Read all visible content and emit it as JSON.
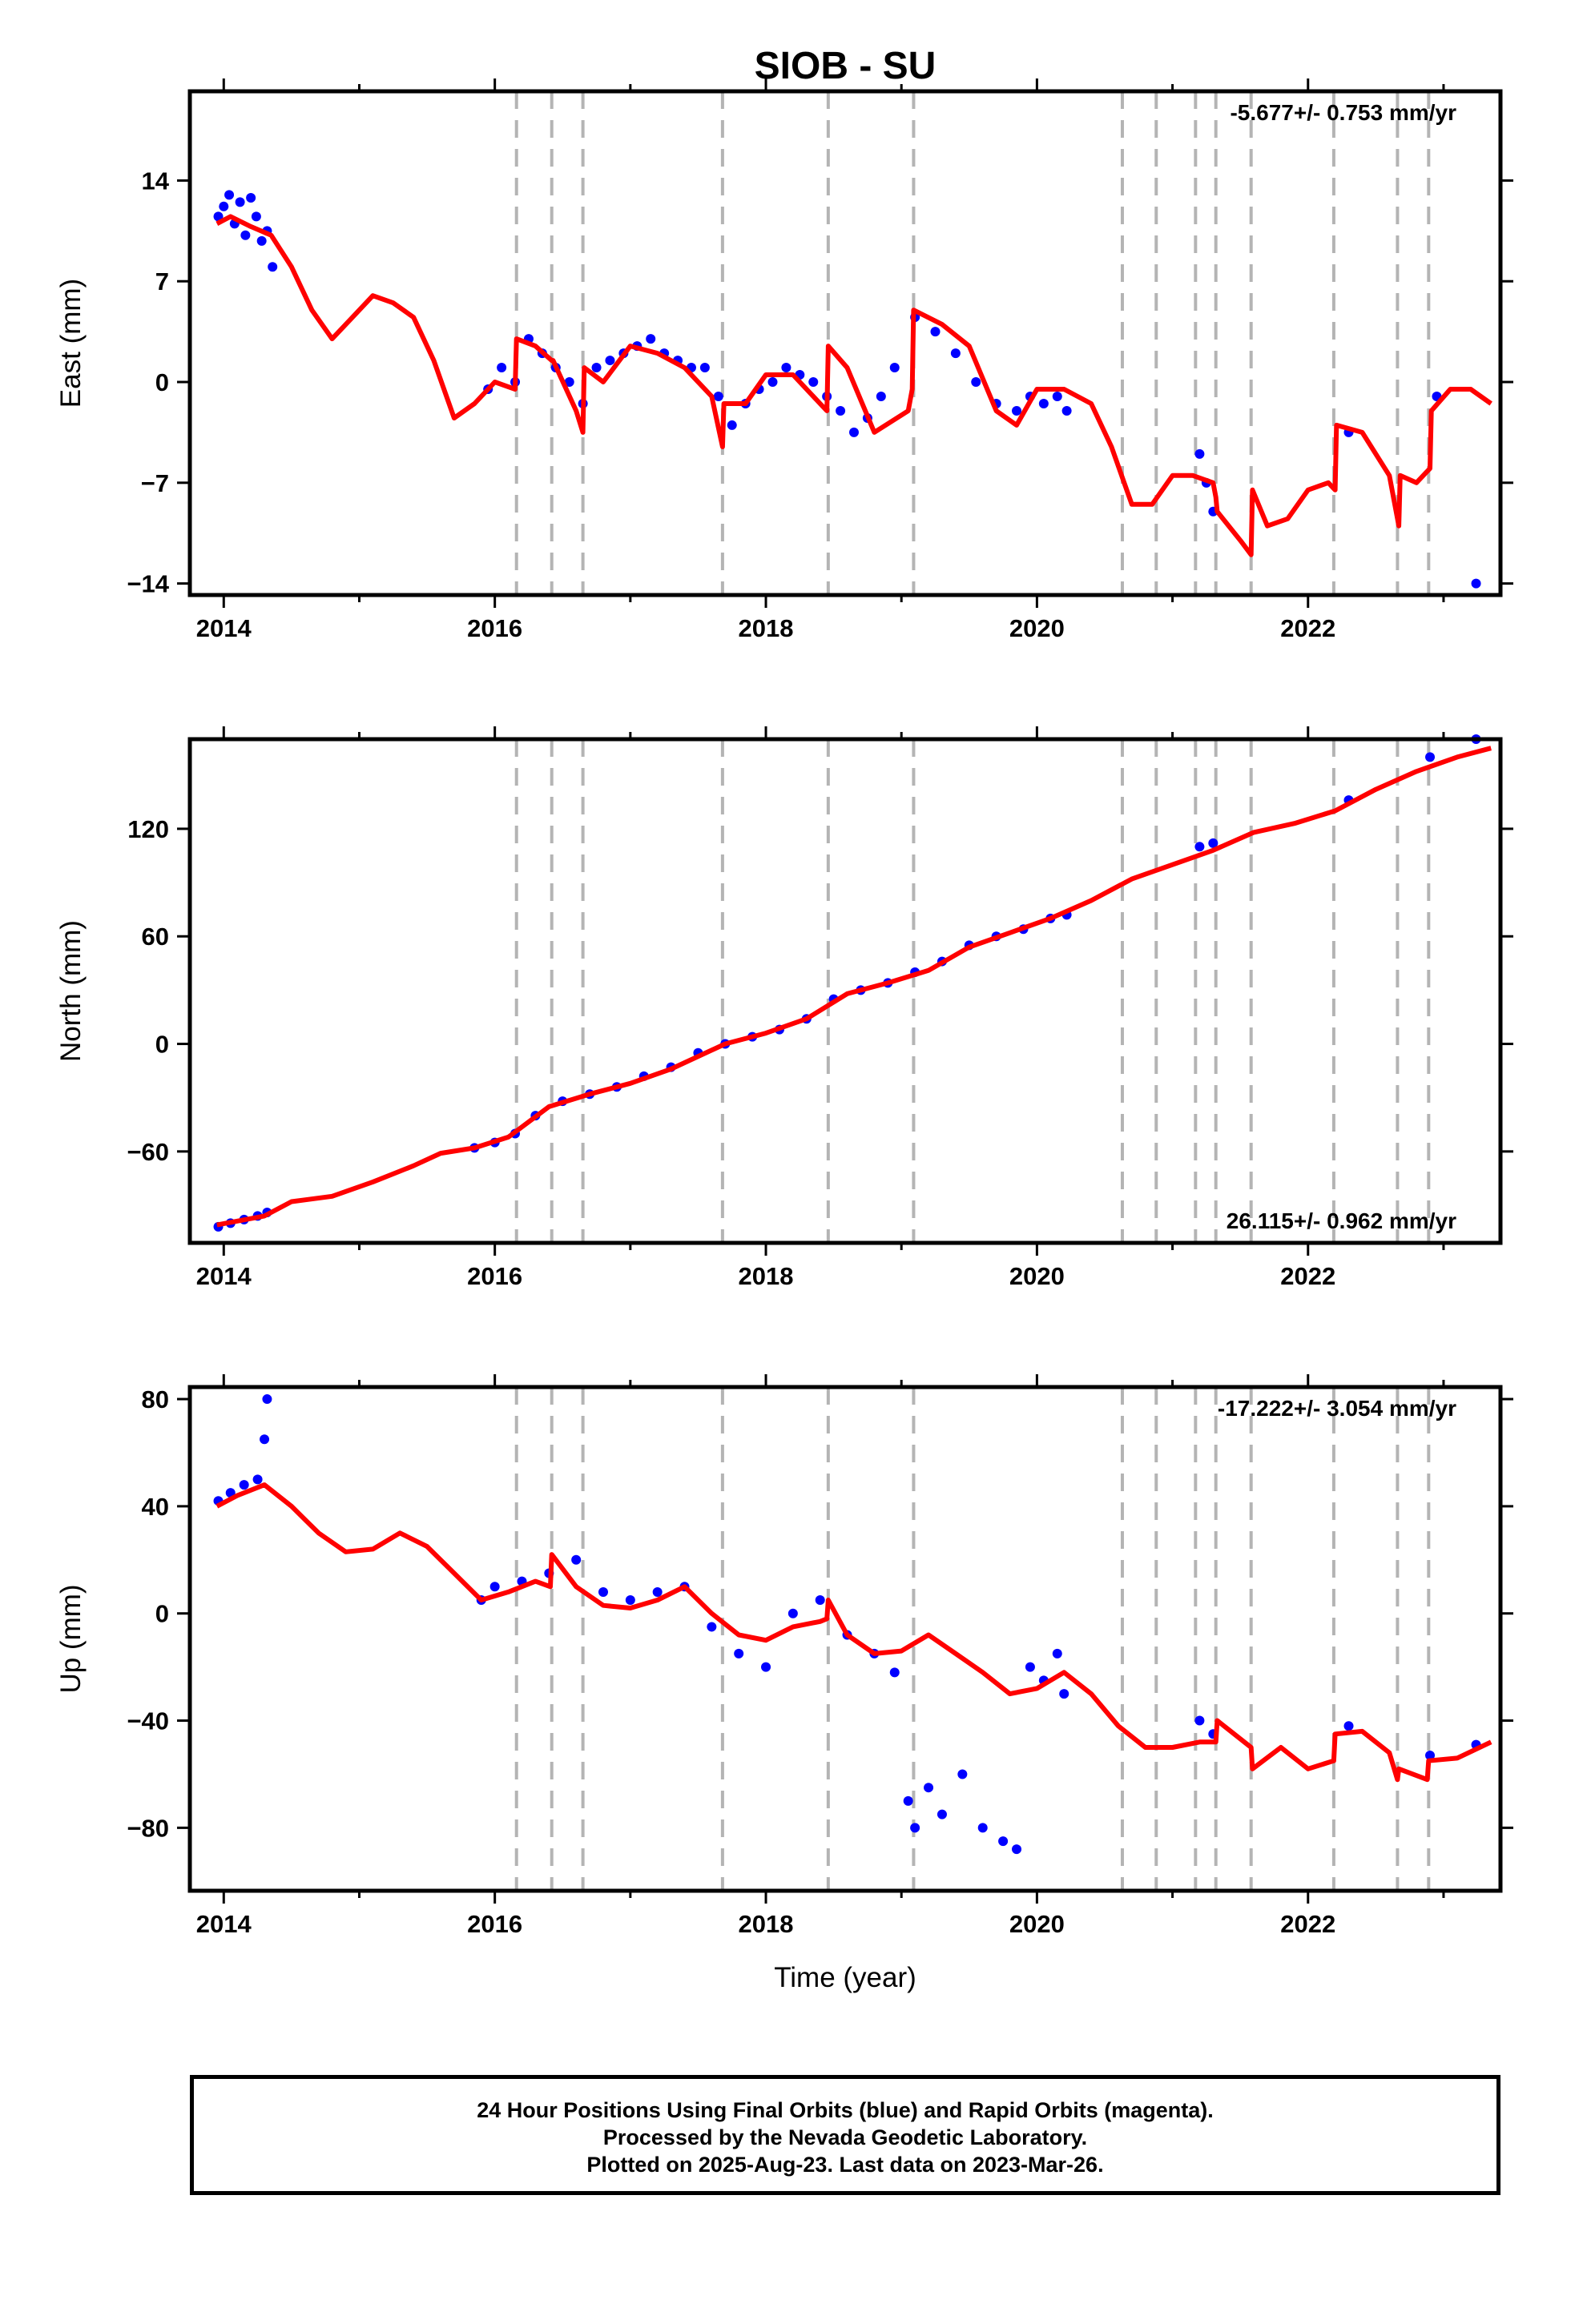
{
  "chart_data": [
    {
      "type": "scatter",
      "title": "SIOB - SU",
      "xlabel": "",
      "ylabel": "East (mm)",
      "xlim": [
        2013.75,
        2023.42
      ],
      "ylim": [
        -14.8,
        20.2
      ],
      "xticks": [
        2014,
        2016,
        2018,
        2020,
        2022
      ],
      "yticks": [
        14,
        7,
        0,
        -7,
        -14
      ],
      "rate_label": "-5.677+/- 0.753 mm/yr",
      "series": [
        {
          "name": "daily positions",
          "color": "#0000ff",
          "x": [
            2013.96,
            2014.0,
            2014.04,
            2014.08,
            2014.12,
            2014.16,
            2014.2,
            2014.24,
            2014.28,
            2014.32,
            2014.36,
            2015.95,
            2016.05,
            2016.15,
            2016.25,
            2016.35,
            2016.45,
            2016.55,
            2016.65,
            2016.75,
            2016.85,
            2016.95,
            2017.05,
            2017.15,
            2017.25,
            2017.35,
            2017.45,
            2017.55,
            2017.65,
            2017.75,
            2017.85,
            2017.95,
            2018.05,
            2018.15,
            2018.25,
            2018.35,
            2018.45,
            2018.55,
            2018.65,
            2018.75,
            2018.85,
            2018.95,
            2019.1,
            2019.25,
            2019.4,
            2019.55,
            2019.7,
            2019.85,
            2019.95,
            2020.05,
            2020.15,
            2020.22,
            2021.2,
            2021.25,
            2021.3,
            2022.3,
            2022.95,
            2023.24
          ],
          "y": [
            11.5,
            12.2,
            13.0,
            11.0,
            12.5,
            10.2,
            12.8,
            11.5,
            9.8,
            10.5,
            8.0,
            -0.5,
            1.0,
            0.0,
            3.0,
            2.0,
            1.0,
            0.0,
            -1.5,
            1.0,
            1.5,
            2.0,
            2.5,
            3.0,
            2.0,
            1.5,
            1.0,
            1.0,
            -1.0,
            -3.0,
            -1.5,
            -0.5,
            0.0,
            1.0,
            0.5,
            0.0,
            -1.0,
            -2.0,
            -3.5,
            -2.5,
            -1.0,
            1.0,
            4.5,
            3.5,
            2.0,
            0.0,
            -1.5,
            -2.0,
            -1.0,
            -1.5,
            -1.0,
            -2.0,
            -5.0,
            -7.0,
            -9.0,
            -3.5,
            -1.0,
            -14.0
          ]
        },
        {
          "name": "model fit",
          "color": "#ff0000",
          "x": [
            2013.95,
            2014.05,
            2014.2,
            2014.35,
            2014.5,
            2014.65,
            2014.8,
            2014.95,
            2015.1,
            2015.25,
            2015.4,
            2015.55,
            2015.7,
            2015.85,
            2016.0,
            2016.15,
            2016.16,
            2016.3,
            2016.42,
            2016.43,
            2016.6,
            2016.65,
            2016.66,
            2016.8,
            2017.0,
            2017.2,
            2017.4,
            2017.6,
            2017.68,
            2017.69,
            2017.85,
            2018.0,
            2018.2,
            2018.4,
            2018.45,
            2018.46,
            2018.6,
            2018.8,
            2019.05,
            2019.08,
            2019.09,
            2019.3,
            2019.5,
            2019.7,
            2019.85,
            2020.0,
            2020.2,
            2020.4,
            2020.55,
            2020.7,
            2020.85,
            2021.0,
            2021.15,
            2021.3,
            2021.32,
            2021.33,
            2021.5,
            2021.58,
            2021.59,
            2021.7,
            2021.85,
            2022.0,
            2022.15,
            2022.2,
            2022.21,
            2022.4,
            2022.6,
            2022.67,
            2022.68,
            2022.8,
            2022.9,
            2022.91,
            2023.05,
            2023.2,
            2023.35
          ],
          "y": [
            11.0,
            11.5,
            10.8,
            10.2,
            8.0,
            5.0,
            3.0,
            4.5,
            6.0,
            5.5,
            4.5,
            1.5,
            -2.5,
            -1.5,
            0.0,
            -0.5,
            3.0,
            2.5,
            1.5,
            1.5,
            -2.0,
            -3.5,
            1.0,
            0.0,
            2.5,
            2.0,
            1.0,
            -1.0,
            -4.5,
            -1.5,
            -1.5,
            0.5,
            0.5,
            -1.5,
            -2.0,
            2.5,
            1.0,
            -3.5,
            -2.0,
            -0.5,
            5.0,
            4.0,
            2.5,
            -2.0,
            -3.0,
            -0.5,
            -0.5,
            -1.5,
            -4.5,
            -8.5,
            -8.5,
            -6.5,
            -6.5,
            -7.0,
            -8.0,
            -9.0,
            -11.0,
            -12.0,
            -7.5,
            -10.0,
            -9.5,
            -7.5,
            -7.0,
            -7.5,
            -3.0,
            -3.5,
            -6.5,
            -10.0,
            -6.5,
            -7.0,
            -6.0,
            -2.0,
            -0.5,
            -0.5,
            -1.5
          ]
        }
      ],
      "event_lines_x": [
        2016.16,
        2016.42,
        2016.65,
        2017.68,
        2018.46,
        2019.09,
        2020.63,
        2020.88,
        2021.17,
        2021.32,
        2021.58,
        2022.19,
        2022.66,
        2022.89
      ],
      "grid": false,
      "legend": "none"
    },
    {
      "type": "scatter",
      "title": "",
      "xlabel": "",
      "ylabel": "North (mm)",
      "xlim": [
        2013.75,
        2023.42
      ],
      "ylim": [
        -111,
        170
      ],
      "xticks": [
        2014,
        2016,
        2018,
        2020,
        2022
      ],
      "yticks": [
        120,
        60,
        0,
        -60
      ],
      "rate_label": "26.115+/- 0.962 mm/yr",
      "series": [
        {
          "name": "daily positions",
          "color": "#0000ff",
          "x": [
            2013.96,
            2014.05,
            2014.15,
            2014.25,
            2014.32,
            2015.85,
            2016.0,
            2016.15,
            2016.3,
            2016.5,
            2016.7,
            2016.9,
            2017.1,
            2017.3,
            2017.5,
            2017.7,
            2017.9,
            2018.1,
            2018.3,
            2018.5,
            2018.7,
            2018.9,
            2019.1,
            2019.3,
            2019.5,
            2019.7,
            2019.9,
            2020.1,
            2020.22,
            2021.2,
            2021.3,
            2022.3,
            2022.9,
            2023.24
          ],
          "y": [
            -102,
            -100,
            -98,
            -96,
            -94,
            -58,
            -55,
            -50,
            -40,
            -32,
            -28,
            -24,
            -18,
            -13,
            -5,
            0,
            4,
            8,
            14,
            25,
            30,
            34,
            40,
            46,
            55,
            60,
            64,
            70,
            72,
            110,
            112,
            136,
            160,
            170
          ]
        },
        {
          "name": "model fit",
          "color": "#ff0000",
          "x": [
            2013.95,
            2014.3,
            2014.5,
            2014.8,
            2015.1,
            2015.4,
            2015.6,
            2015.85,
            2016.1,
            2016.4,
            2016.7,
            2017.0,
            2017.3,
            2017.7,
            2018.0,
            2018.3,
            2018.6,
            2018.9,
            2019.2,
            2019.5,
            2019.8,
            2020.1,
            2020.4,
            2020.7,
            2021.0,
            2021.3,
            2021.6,
            2021.9,
            2022.2,
            2022.5,
            2022.8,
            2023.1,
            2023.35
          ],
          "y": [
            -101,
            -96,
            -88,
            -85,
            -77,
            -68,
            -61,
            -58,
            -52,
            -35,
            -28,
            -22,
            -14,
            0,
            6,
            14,
            28,
            34,
            41,
            54,
            62,
            70,
            80,
            92,
            100,
            108,
            118,
            123,
            130,
            142,
            152,
            160,
            165
          ]
        }
      ],
      "event_lines_x": [
        2016.16,
        2016.42,
        2016.65,
        2017.68,
        2018.46,
        2019.09,
        2020.63,
        2020.88,
        2021.17,
        2021.32,
        2021.58,
        2022.19,
        2022.66,
        2022.89
      ],
      "grid": false,
      "legend": "none"
    },
    {
      "type": "scatter",
      "title": "",
      "xlabel": "Time (year)",
      "ylabel": "Up (mm)",
      "xlim": [
        2013.75,
        2023.42
      ],
      "ylim": [
        -103.5,
        84.5
      ],
      "xticks": [
        2014,
        2016,
        2018,
        2020,
        2022
      ],
      "yticks": [
        80,
        40,
        0,
        -40,
        -80
      ],
      "rate_label": "-17.222+/- 3.054 mm/yr",
      "series": [
        {
          "name": "daily positions",
          "color": "#0000ff",
          "x": [
            2013.96,
            2014.05,
            2014.15,
            2014.25,
            2014.3,
            2014.32,
            2015.9,
            2016.0,
            2016.2,
            2016.4,
            2016.6,
            2016.8,
            2017.0,
            2017.2,
            2017.4,
            2017.6,
            2017.8,
            2018.0,
            2018.2,
            2018.4,
            2018.6,
            2018.8,
            2018.95,
            2019.05,
            2019.1,
            2019.2,
            2019.3,
            2019.45,
            2019.6,
            2019.75,
            2019.85,
            2019.95,
            2020.05,
            2020.15,
            2020.2,
            2021.2,
            2021.3,
            2022.3,
            2022.9,
            2023.24
          ],
          "y": [
            42,
            45,
            48,
            50,
            65,
            80,
            5,
            10,
            12,
            15,
            20,
            8,
            5,
            8,
            10,
            -5,
            -15,
            -20,
            0,
            5,
            -8,
            -15,
            -22,
            -70,
            -80,
            -65,
            -75,
            -60,
            -80,
            -85,
            -88,
            -20,
            -25,
            -15,
            -30,
            -40,
            -45,
            -42,
            -53,
            -49
          ]
        },
        {
          "name": "model fit",
          "color": "#ff0000",
          "x": [
            2013.95,
            2014.1,
            2014.3,
            2014.5,
            2014.7,
            2014.9,
            2015.1,
            2015.3,
            2015.5,
            2015.7,
            2015.9,
            2016.1,
            2016.3,
            2016.41,
            2016.42,
            2016.6,
            2016.8,
            2017.0,
            2017.2,
            2017.4,
            2017.6,
            2017.8,
            2018.0,
            2018.2,
            2018.4,
            2018.45,
            2018.46,
            2018.6,
            2018.8,
            2019.0,
            2019.2,
            2019.4,
            2019.6,
            2019.8,
            2020.0,
            2020.2,
            2020.4,
            2020.6,
            2020.8,
            2021.0,
            2021.2,
            2021.32,
            2021.33,
            2021.58,
            2021.59,
            2021.8,
            2022.0,
            2022.19,
            2022.2,
            2022.4,
            2022.6,
            2022.66,
            2022.67,
            2022.88,
            2022.89,
            2023.1,
            2023.35
          ],
          "y": [
            40,
            44,
            48,
            40,
            30,
            23,
            24,
            30,
            25,
            15,
            5,
            8,
            12,
            10,
            22,
            10,
            3,
            2,
            5,
            10,
            0,
            -8,
            -10,
            -5,
            -3,
            -2,
            5,
            -8,
            -15,
            -14,
            -8,
            -15,
            -22,
            -30,
            -28,
            -22,
            -30,
            -42,
            -50,
            -50,
            -48,
            -48,
            -40,
            -50,
            -58,
            -50,
            -58,
            -55,
            -45,
            -44,
            -52,
            -62,
            -58,
            -62,
            -55,
            -54,
            -48
          ]
        }
      ],
      "event_lines_x": [
        2016.16,
        2016.42,
        2016.65,
        2017.68,
        2018.46,
        2019.09,
        2020.63,
        2020.88,
        2021.17,
        2021.32,
        2021.58,
        2022.19,
        2022.66,
        2022.89
      ],
      "grid": false,
      "legend": "none"
    }
  ],
  "footer": {
    "line1": "24 Hour Positions Using Final Orbits (blue) and Rapid Orbits (magenta).",
    "line2": "Processed by the Nevada Geodetic Laboratory.",
    "line3": "Plotted on 2025-Aug-23. Last data on 2023-Mar-26."
  }
}
